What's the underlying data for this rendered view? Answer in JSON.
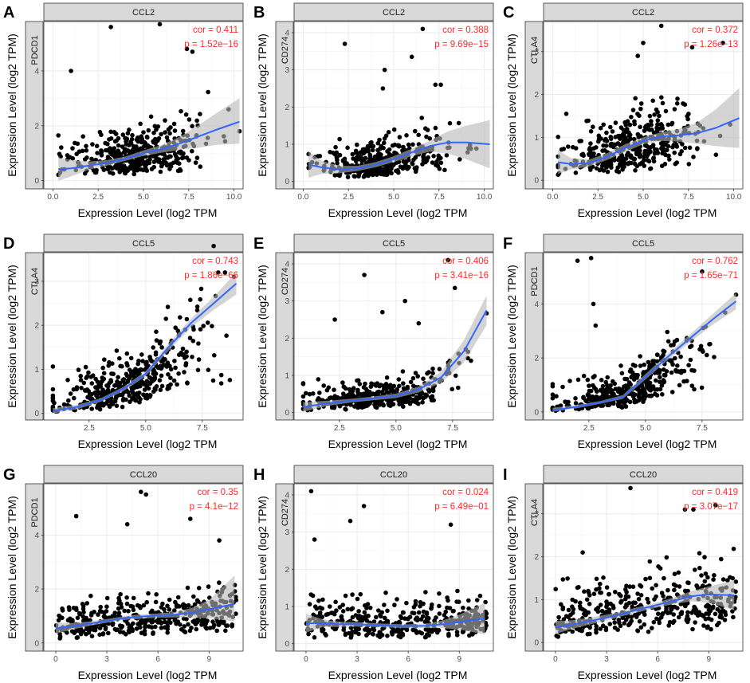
{
  "figure": {
    "x_axis_label": "Expression Level (log2 TPM",
    "y_axis_label": "Expression Level (log2 TPM)",
    "colors": {
      "points": "#000000",
      "fit": "#3366ff",
      "ribbon": "#b8b8b8",
      "stat_text": "#ff2a2a",
      "panel_bg": "#ffffff",
      "grid": "#ebebeb",
      "strip": "#d9d9d9"
    }
  },
  "chart_data": [
    {
      "type": "scatter",
      "panel": "A",
      "strip": "CCL2",
      "ylabel_gene": "PDCD1",
      "cor": "cor = 0.411",
      "p": "p = 1.52e−16",
      "xlim": [
        -0.5,
        10.5
      ],
      "ylim": [
        -0.3,
        5.8
      ],
      "xticks": [
        0,
        2.5,
        5,
        7.5,
        10
      ],
      "xtick_labels": [
        "0.0",
        "2.5",
        "5.0",
        "7.5",
        "10.0"
      ],
      "yticks": [
        0,
        2,
        4
      ],
      "ytick_labels": [
        "0",
        "2",
        "4"
      ],
      "fit_x": [
        0.3,
        1,
        2,
        3,
        4,
        5,
        6,
        7,
        8,
        9,
        10.3
      ],
      "fit_y": [
        0.42,
        0.45,
        0.55,
        0.65,
        0.8,
        1.0,
        1.15,
        1.35,
        1.6,
        1.85,
        2.15
      ],
      "band_lo": [
        0.0,
        0.15,
        0.4,
        0.55,
        0.72,
        0.9,
        1.02,
        1.12,
        1.2,
        1.3,
        1.35
      ],
      "band_hi": [
        0.85,
        0.75,
        0.7,
        0.75,
        0.88,
        1.1,
        1.3,
        1.6,
        2.0,
        2.45,
        3.0
      ],
      "seed": 11,
      "n": 400,
      "xmean": 4.5,
      "xsd": 1.8,
      "xmin": 0.3,
      "xmax": 10.3,
      "ymode": "fit",
      "noise": 0.7,
      "ymin": 0,
      "ymax": 5.6,
      "outliers": [
        [
          3.2,
          5.6
        ],
        [
          5.9,
          5.7
        ],
        [
          7.4,
          4.8
        ],
        [
          7.7,
          4.7
        ],
        [
          9.7,
          2.6
        ],
        [
          10.3,
          1.8
        ],
        [
          1.0,
          4.0
        ]
      ]
    },
    {
      "type": "scatter",
      "panel": "B",
      "strip": "CCL2",
      "ylabel_gene": "CD274",
      "cor": "cor = 0.388",
      "p": "p = 9.69e−15",
      "xlim": [
        -0.5,
        10.5
      ],
      "ylim": [
        -0.2,
        4.3
      ],
      "xticks": [
        0,
        2.5,
        5,
        7.5,
        10
      ],
      "xtick_labels": [
        "0.0",
        "2.5",
        "5.0",
        "7.5",
        "10.0"
      ],
      "yticks": [
        0,
        1,
        2,
        3,
        4
      ],
      "ytick_labels": [
        "0",
        "1",
        "2",
        "3",
        "4"
      ],
      "fit_x": [
        0.3,
        1,
        2,
        3,
        4,
        5,
        6,
        7,
        8,
        9,
        10.3
      ],
      "fit_y": [
        0.45,
        0.38,
        0.32,
        0.35,
        0.45,
        0.6,
        0.78,
        0.95,
        1.05,
        1.05,
        1.0
      ],
      "band_lo": [
        0.1,
        0.2,
        0.22,
        0.28,
        0.38,
        0.52,
        0.68,
        0.8,
        0.75,
        0.6,
        0.35
      ],
      "band_hi": [
        0.8,
        0.56,
        0.42,
        0.42,
        0.52,
        0.68,
        0.88,
        1.1,
        1.35,
        1.5,
        1.65
      ],
      "seed": 23,
      "n": 400,
      "xmean": 4.5,
      "xsd": 1.8,
      "xmin": 0.3,
      "xmax": 10.3,
      "ymode": "fit",
      "noise": 0.45,
      "ymin": 0,
      "ymax": 4.2,
      "outliers": [
        [
          6.6,
          4.1
        ],
        [
          2.3,
          3.7
        ],
        [
          6.0,
          3.35
        ],
        [
          4.4,
          2.5
        ],
        [
          7.3,
          2.6
        ],
        [
          7.6,
          2.6
        ],
        [
          4.5,
          3.0
        ]
      ]
    },
    {
      "type": "scatter",
      "panel": "C",
      "strip": "CCL2",
      "ylabel_gene": "CTLA4",
      "cor": "cor = 0.372",
      "p": "p = 1.26e−13",
      "xlim": [
        -0.5,
        10.5
      ],
      "ylim": [
        -0.2,
        3.7
      ],
      "xticks": [
        0,
        2.5,
        5,
        7.5,
        10
      ],
      "xtick_labels": [
        "0.0",
        "2.5",
        "5.0",
        "7.5",
        "10.0"
      ],
      "yticks": [
        0,
        1,
        2,
        3
      ],
      "ytick_labels": [
        "0",
        "1",
        "2",
        "3"
      ],
      "fit_x": [
        0.3,
        1,
        2,
        3,
        4,
        5,
        6,
        7,
        8,
        9,
        10.3
      ],
      "fit_y": [
        0.42,
        0.38,
        0.4,
        0.55,
        0.75,
        0.92,
        1.02,
        1.05,
        1.1,
        1.22,
        1.45
      ],
      "band_lo": [
        0.15,
        0.25,
        0.32,
        0.47,
        0.66,
        0.84,
        0.92,
        0.9,
        0.85,
        0.8,
        0.75
      ],
      "band_hi": [
        0.7,
        0.52,
        0.48,
        0.63,
        0.84,
        1.0,
        1.12,
        1.2,
        1.35,
        1.65,
        2.15
      ],
      "seed": 37,
      "n": 400,
      "xmean": 4.5,
      "xsd": 1.8,
      "xmin": 0.3,
      "xmax": 10.3,
      "ymode": "fit",
      "noise": 0.6,
      "ymin": 0,
      "ymax": 3.6,
      "outliers": [
        [
          6.0,
          3.6
        ],
        [
          7.7,
          3.1
        ],
        [
          9.4,
          3.2
        ],
        [
          5.0,
          3.2
        ],
        [
          4.7,
          2.9
        ],
        [
          9.8,
          1.3
        ]
      ]
    },
    {
      "type": "scatter",
      "panel": "D",
      "strip": "CCL5",
      "ylabel_gene": "CTLA4",
      "cor": "cor = 0.743",
      "p": "p = 1.86e−66",
      "xlim": [
        0.5,
        9.3
      ],
      "ylim": [
        -0.15,
        3.65
      ],
      "xticks": [
        2.5,
        5,
        7.5
      ],
      "xtick_labels": [
        "2.5",
        "5.0",
        "7.5"
      ],
      "yticks": [
        0,
        1,
        2,
        3
      ],
      "ytick_labels": [
        "0",
        "1",
        "2",
        "3"
      ],
      "fit_x": [
        0.9,
        2,
        3,
        4,
        5,
        6,
        7,
        8,
        9
      ],
      "fit_y": [
        0.05,
        0.15,
        0.3,
        0.55,
        0.9,
        1.5,
        2.05,
        2.5,
        2.95
      ],
      "band_lo": [
        0.0,
        0.1,
        0.26,
        0.5,
        0.84,
        1.42,
        1.95,
        2.35,
        2.7
      ],
      "band_hi": [
        0.12,
        0.2,
        0.34,
        0.6,
        0.96,
        1.58,
        2.15,
        2.65,
        3.2
      ],
      "seed": 41,
      "n": 400,
      "xmean": 4.3,
      "xsd": 1.6,
      "xmin": 0.9,
      "xmax": 9,
      "ymode": "fit",
      "noise": 0.5,
      "ymin": 0,
      "ymax": 3.5,
      "outliers": [
        [
          8.2,
          3.2
        ],
        [
          8.5,
          3.2
        ],
        [
          8.9,
          3.1
        ],
        [
          8.0,
          3.8
        ]
      ]
    },
    {
      "type": "scatter",
      "panel": "E",
      "strip": "CCL5",
      "ylabel_gene": "CD274",
      "cor": "cor = 0.406",
      "p": "p = 3.41e−16",
      "xlim": [
        0.5,
        9.3
      ],
      "ylim": [
        -0.2,
        4.3
      ],
      "xticks": [
        2.5,
        5,
        7.5
      ],
      "xtick_labels": [
        "2.5",
        "5.0",
        "7.5"
      ],
      "yticks": [
        0,
        1,
        2,
        3,
        4
      ],
      "ytick_labels": [
        "0",
        "1",
        "2",
        "3",
        "4"
      ],
      "fit_x": [
        0.9,
        2,
        3,
        4,
        5,
        6,
        7,
        8,
        9
      ],
      "fit_y": [
        0.15,
        0.25,
        0.32,
        0.38,
        0.45,
        0.62,
        0.95,
        1.65,
        2.75
      ],
      "band_lo": [
        0.02,
        0.18,
        0.27,
        0.33,
        0.39,
        0.54,
        0.8,
        1.35,
        2.35
      ],
      "band_hi": [
        0.28,
        0.32,
        0.37,
        0.43,
        0.51,
        0.7,
        1.1,
        1.95,
        3.15
      ],
      "seed": 53,
      "n": 400,
      "xmean": 4.3,
      "xsd": 1.6,
      "xmin": 0.9,
      "xmax": 9,
      "ymode": "fit",
      "noise": 0.35,
      "ymin": 0,
      "ymax": 4.1,
      "outliers": [
        [
          7.3,
          4.1
        ],
        [
          3.6,
          3.7
        ],
        [
          7.6,
          3.35
        ],
        [
          2.3,
          2.5
        ],
        [
          4.4,
          2.7
        ],
        [
          5.4,
          3.0
        ],
        [
          6.0,
          2.4
        ]
      ]
    },
    {
      "type": "scatter",
      "panel": "F",
      "strip": "CCL5",
      "ylabel_gene": "PDCD1",
      "cor": "cor = 0.762",
      "p": "p = 1.65e−71",
      "xlim": [
        0.5,
        9.3
      ],
      "ylim": [
        -0.3,
        5.9
      ],
      "xticks": [
        2.5,
        5,
        7.5
      ],
      "xtick_labels": [
        "2.5",
        "5.0",
        "7.5"
      ],
      "yticks": [
        0,
        2,
        4
      ],
      "ytick_labels": [
        "0",
        "2",
        "4"
      ],
      "fit_x": [
        0.9,
        2,
        3,
        4,
        5,
        6,
        7,
        8,
        9
      ],
      "fit_y": [
        0.05,
        0.2,
        0.35,
        0.55,
        1.3,
        2.05,
        2.75,
        3.45,
        4.1
      ],
      "band_lo": [
        0.0,
        0.14,
        0.3,
        0.48,
        1.2,
        1.93,
        2.6,
        3.25,
        3.8
      ],
      "band_hi": [
        0.15,
        0.26,
        0.4,
        0.62,
        1.4,
        2.17,
        2.9,
        3.65,
        4.4
      ],
      "seed": 67,
      "n": 400,
      "xmean": 4.3,
      "xsd": 1.6,
      "xmin": 0.9,
      "xmax": 9,
      "ymode": "fit",
      "noise": 0.6,
      "ymin": 0,
      "ymax": 5.6,
      "outliers": [
        [
          2.6,
          5.7
        ],
        [
          2.0,
          5.6
        ],
        [
          2.7,
          4.0
        ],
        [
          2.8,
          3.2
        ],
        [
          7.5,
          5.2
        ]
      ]
    },
    {
      "type": "scatter",
      "panel": "G",
      "strip": "CCL20",
      "ylabel_gene": "PDCD1",
      "cor": "cor = 0.35",
      "p": "p = 4.1e−12",
      "xlim": [
        -0.7,
        11
      ],
      "ylim": [
        -0.3,
        5.9
      ],
      "xticks": [
        0,
        3,
        6,
        9
      ],
      "xtick_labels": [
        "0",
        "3",
        "6",
        "9"
      ],
      "yticks": [
        0,
        2,
        4
      ],
      "ytick_labels": [
        "0",
        "2",
        "4"
      ],
      "fit_x": [
        0,
        1,
        2,
        3,
        4,
        5,
        6,
        7,
        8,
        9,
        10.5
      ],
      "fit_y": [
        0.55,
        0.62,
        0.72,
        0.82,
        0.92,
        0.98,
        1.02,
        1.05,
        1.12,
        1.25,
        1.45
      ],
      "band_lo": [
        0.35,
        0.5,
        0.64,
        0.75,
        0.85,
        0.9,
        0.94,
        0.95,
        0.95,
        0.92,
        0.8
      ],
      "band_hi": [
        0.75,
        0.74,
        0.8,
        0.89,
        0.99,
        1.06,
        1.1,
        1.15,
        1.3,
        1.6,
        2.5
      ],
      "seed": 79,
      "n": 400,
      "xmean": 5.2,
      "xsd": 2.7,
      "xmin": 0,
      "xmax": 10.6,
      "ymode": "uniform",
      "noise": 0.6,
      "ymin": 0,
      "ymax": 5.6,
      "outliers": [
        [
          5.0,
          5.6
        ],
        [
          5.3,
          5.5
        ],
        [
          1.2,
          4.7
        ],
        [
          4.2,
          4.4
        ],
        [
          7.9,
          4.6
        ],
        [
          9.6,
          3.8
        ]
      ]
    },
    {
      "type": "scatter",
      "panel": "H",
      "strip": "CCL20",
      "ylabel_gene": "CD274",
      "cor": "cor = 0.024",
      "p": "p = 6.49e−01",
      "xlim": [
        -0.7,
        11
      ],
      "ylim": [
        -0.2,
        4.3
      ],
      "xticks": [
        0,
        3,
        6,
        9
      ],
      "xtick_labels": [
        "0",
        "3",
        "6",
        "9"
      ],
      "yticks": [
        0,
        1,
        2,
        3,
        4
      ],
      "ytick_labels": [
        "0",
        "1",
        "2",
        "3",
        "4"
      ],
      "fit_x": [
        0,
        1,
        2,
        3,
        4,
        5,
        6,
        7,
        8,
        9,
        10.5
      ],
      "fit_y": [
        0.55,
        0.55,
        0.52,
        0.52,
        0.5,
        0.48,
        0.47,
        0.48,
        0.52,
        0.58,
        0.68
      ],
      "band_lo": [
        0.3,
        0.45,
        0.45,
        0.46,
        0.45,
        0.43,
        0.42,
        0.42,
        0.42,
        0.38,
        0.25
      ],
      "band_hi": [
        0.8,
        0.65,
        0.59,
        0.58,
        0.55,
        0.53,
        0.52,
        0.54,
        0.62,
        0.78,
        1.1
      ],
      "seed": 97,
      "n": 400,
      "xmean": 5.2,
      "xsd": 2.7,
      "xmin": 0,
      "xmax": 10.6,
      "ymode": "uniform",
      "noise": 0.45,
      "ymin": 0,
      "ymax": 4.2,
      "outliers": [
        [
          0.3,
          4.1
        ],
        [
          3.4,
          3.7
        ],
        [
          2.6,
          3.3
        ],
        [
          8.5,
          3.2
        ],
        [
          0.5,
          2.8
        ]
      ]
    },
    {
      "type": "scatter",
      "panel": "I",
      "strip": "CCL20",
      "ylabel_gene": "CTLA4",
      "cor": "cor = 0.419",
      "p": "p = 3.07e−17",
      "xlim": [
        -0.7,
        11
      ],
      "ylim": [
        -0.2,
        3.7
      ],
      "xticks": [
        0,
        3,
        6,
        9
      ],
      "xtick_labels": [
        "0",
        "3",
        "6",
        "9"
      ],
      "yticks": [
        0,
        1,
        2,
        3
      ],
      "ytick_labels": [
        "0",
        "1",
        "2",
        "3"
      ],
      "fit_x": [
        0,
        1,
        2,
        3,
        4,
        5,
        6,
        7,
        8,
        9,
        10.5
      ],
      "fit_y": [
        0.35,
        0.42,
        0.5,
        0.58,
        0.68,
        0.78,
        0.88,
        0.98,
        1.08,
        1.12,
        1.1
      ],
      "band_lo": [
        0.2,
        0.32,
        0.42,
        0.51,
        0.62,
        0.72,
        0.82,
        0.9,
        0.96,
        0.93,
        0.75
      ],
      "band_hi": [
        0.5,
        0.52,
        0.58,
        0.65,
        0.74,
        0.84,
        0.94,
        1.06,
        1.2,
        1.31,
        1.45
      ],
      "seed": 113,
      "n": 400,
      "xmean": 5.2,
      "xsd": 2.7,
      "xmin": 0,
      "xmax": 10.6,
      "ymode": "uniform",
      "noise": 0.6,
      "ymin": 0,
      "ymax": 3.6,
      "outliers": [
        [
          4.4,
          3.6
        ],
        [
          8.1,
          3.1
        ],
        [
          7.6,
          3.1
        ],
        [
          9.4,
          3.2
        ],
        [
          1.6,
          2.1
        ],
        [
          10.4,
          1.5
        ]
      ]
    }
  ]
}
